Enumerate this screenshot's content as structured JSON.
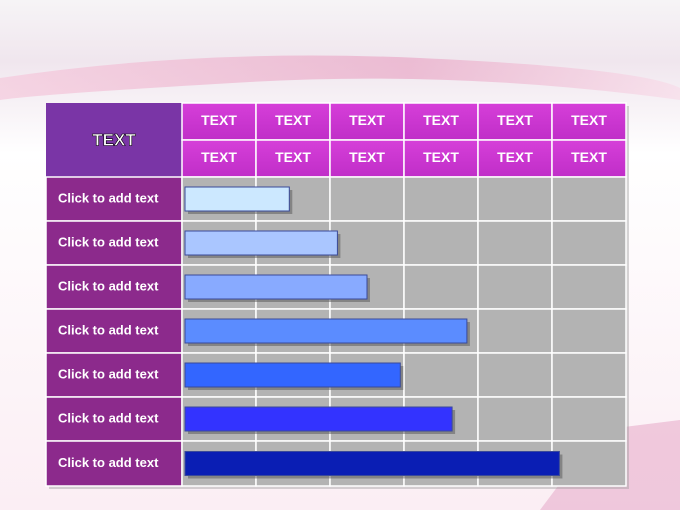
{
  "table": {
    "corner": "TEXT",
    "header_rows": [
      [
        "TEXT",
        "TEXT",
        "TEXT",
        "TEXT",
        "TEXT",
        "TEXT"
      ],
      [
        "TEXT",
        "TEXT",
        "TEXT",
        "TEXT",
        "TEXT",
        "TEXT"
      ]
    ],
    "rows": [
      "Click to add text",
      "Click to add text",
      "Click to add text",
      "Click to add text",
      "Click to add text",
      "Click to add text",
      "Click to add text"
    ]
  },
  "bars": {
    "ends": [
      1.45,
      2.1,
      2.5,
      3.85,
      2.95,
      3.65,
      5.1
    ],
    "colors": [
      "#cce8ff",
      "#aac6ff",
      "#88aaff",
      "#5b8cff",
      "#3366ff",
      "#3333ff",
      "#0a1eb4"
    ]
  }
}
